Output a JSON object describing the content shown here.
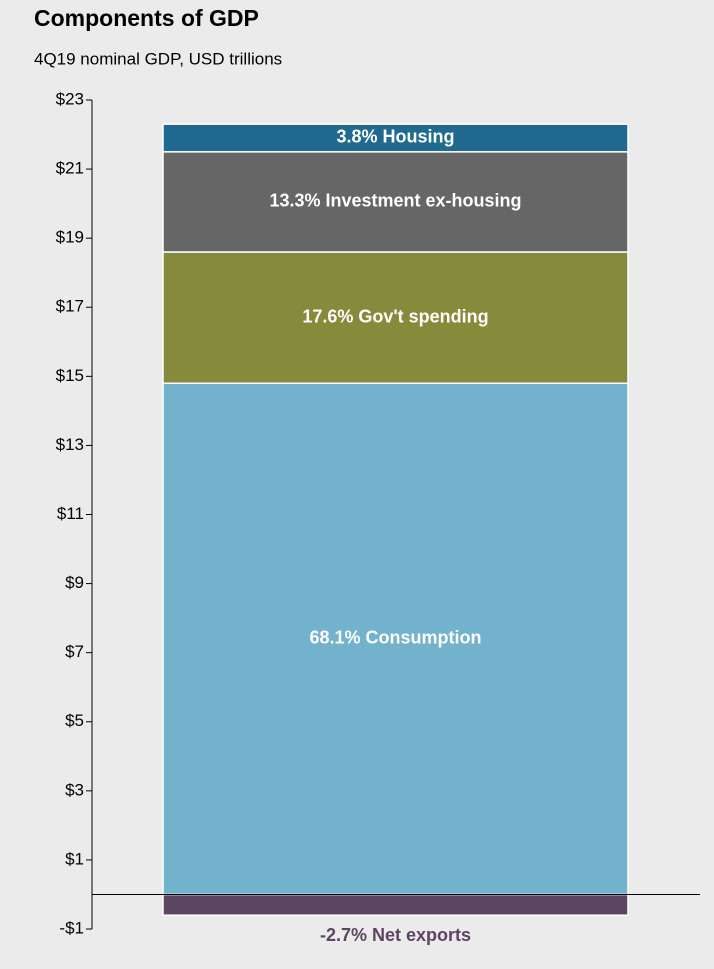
{
  "chart_data": {
    "type": "stacked-bar",
    "title": "Components of GDP",
    "subtitle": "4Q19 nominal GDP, USD trillions",
    "categories": [
      null
    ],
    "series": [
      {
        "name": "-2.7% Net exports",
        "color": "#5b4560",
        "values": [
          -0.6
        ]
      },
      {
        "name": "68.1% Consumption",
        "color": "#72b2cd",
        "values": [
          14.8
        ]
      },
      {
        "name": "17.6% Gov't  spending",
        "color": "#868a3b",
        "values": [
          3.8
        ]
      },
      {
        "name": "13.3% Investment ex-housing",
        "color": "#666666",
        "values": [
          2.9
        ]
      },
      {
        "name": "3.8% Housing",
        "color": "#1f6a8e",
        "values": [
          0.8
        ]
      }
    ],
    "ylim": [
      -1,
      23
    ],
    "yticks": [
      {
        "value": -1,
        "label": "-$1"
      },
      {
        "value": 1,
        "label": "$1"
      },
      {
        "value": 3,
        "label": "$3"
      },
      {
        "value": 5,
        "label": "$5"
      },
      {
        "value": 7,
        "label": "$7"
      },
      {
        "value": 9,
        "label": "$9"
      },
      {
        "value": 11,
        "label": "$11"
      },
      {
        "value": 13,
        "label": "$13"
      },
      {
        "value": 15,
        "label": "$15"
      },
      {
        "value": 17,
        "label": "$17"
      },
      {
        "value": 19,
        "label": "$19"
      },
      {
        "value": 21,
        "label": "$21"
      },
      {
        "value": 23,
        "label": "$23"
      }
    ],
    "grid": false
  }
}
